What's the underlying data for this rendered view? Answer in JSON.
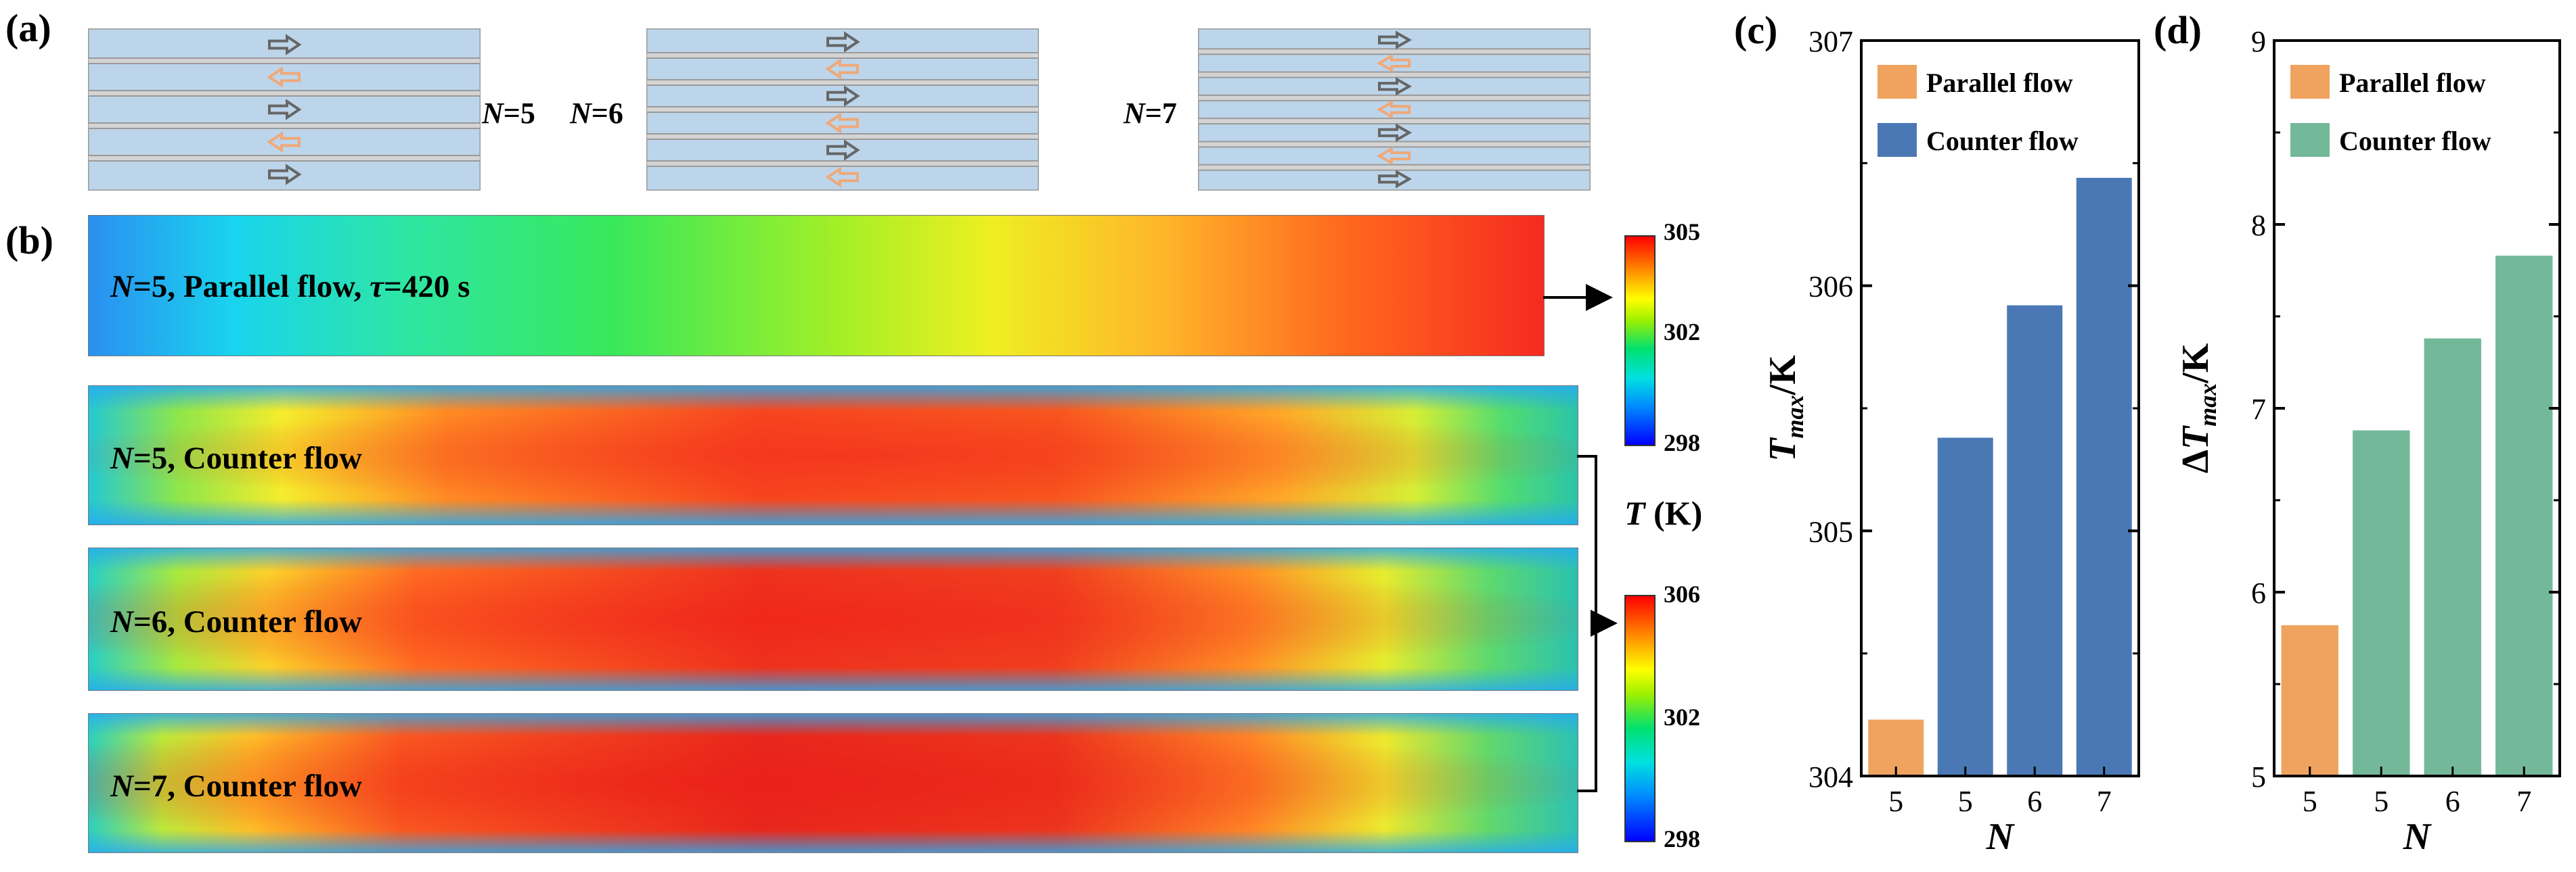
{
  "panel_a": {
    "label": "(a)",
    "configs": [
      {
        "n_symbol": "N",
        "n_value": "=5",
        "arrows": [
          "right",
          "left",
          "right",
          "left",
          "right"
        ]
      },
      {
        "n_symbol": "N",
        "n_value": "=6",
        "arrows": [
          "right",
          "left",
          "right",
          "left",
          "right",
          "left"
        ]
      },
      {
        "n_symbol": "N",
        "n_value": "=7",
        "arrows": [
          "right",
          "left",
          "right",
          "left",
          "right",
          "left",
          "right"
        ]
      }
    ],
    "colors": {
      "channel": "#bcd5ea",
      "wall": "#9a9a9a",
      "arrow_right": "#666666",
      "arrow_left": "#f0a878"
    }
  },
  "panel_b": {
    "label": "(b)",
    "maps": [
      {
        "n_symbol": "N",
        "n_rest": "=5, Parallel flow, ",
        "tau_symbol": "τ",
        "tau_rest": "=420 s"
      },
      {
        "n_symbol": "N",
        "n_rest": "=5, Counter flow"
      },
      {
        "n_symbol": "N",
        "n_rest": "=6, Counter flow"
      },
      {
        "n_symbol": "N",
        "n_rest": "=7, Counter flow"
      }
    ],
    "colorbar_top": {
      "max": "305",
      "mid": "302",
      "min": "298"
    },
    "colorbar_bottom": {
      "max": "306",
      "mid": "302",
      "min": "298"
    },
    "unit_symbol": "T",
    "unit_rest": " (K)"
  },
  "chart_data": [
    {
      "type": "bar",
      "panel_label": "(c)",
      "title": "",
      "xlabel": "N",
      "ylabel_main": "T",
      "ylabel_sub": "max",
      "ylabel_unit": "/K",
      "ylim": [
        304,
        307
      ],
      "yticks": [
        "304",
        "305",
        "306",
        "307"
      ],
      "categories": [
        "5",
        "5",
        "6",
        "7"
      ],
      "values": [
        304.23,
        305.38,
        305.92,
        306.44
      ],
      "bar_series": [
        "Parallel flow",
        "Counter flow",
        "Counter flow",
        "Counter flow"
      ],
      "series": [
        {
          "name": "Parallel flow",
          "color": "#f0a35e"
        },
        {
          "name": "Counter flow",
          "color": "#4a78b5"
        }
      ],
      "legend": "top-left"
    },
    {
      "type": "bar",
      "panel_label": "(d)",
      "title": "",
      "xlabel": "N",
      "ylabel_prefix": "Δ",
      "ylabel_main": "T",
      "ylabel_sub": "max",
      "ylabel_unit": "/K",
      "ylim": [
        5,
        9
      ],
      "yticks": [
        "5",
        "6",
        "7",
        "8",
        "9"
      ],
      "categories": [
        "5",
        "5",
        "6",
        "7"
      ],
      "values": [
        5.82,
        6.88,
        7.38,
        7.83
      ],
      "bar_series": [
        "Parallel flow",
        "Counter flow",
        "Counter flow",
        "Counter flow"
      ],
      "series": [
        {
          "name": "Parallel flow",
          "color": "#f0a35e"
        },
        {
          "name": "Counter flow",
          "color": "#74b89a"
        }
      ],
      "legend": "top-left"
    }
  ]
}
